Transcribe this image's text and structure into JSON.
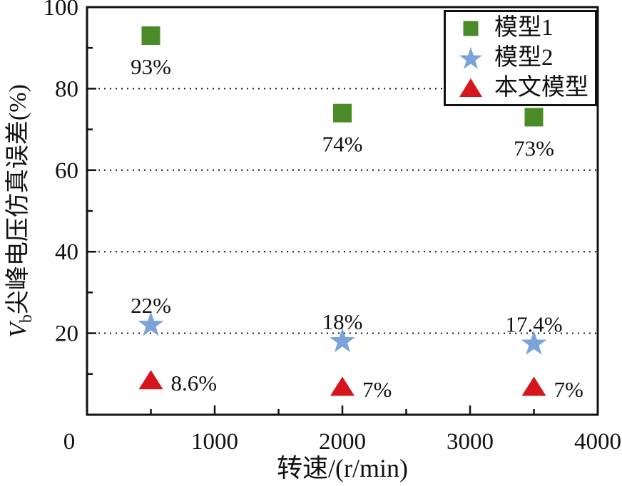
{
  "figure": {
    "background": "#ffffff",
    "axis_color": "#111111"
  },
  "chart_data": {
    "type": "scatter",
    "title": "",
    "xlabel": "转速/(r/min)",
    "ylabel_var": "V",
    "ylabel_sub": "b",
    "ylabel_rest": "尖峰电压仿真误差(%)",
    "xlim": [
      0,
      4000
    ],
    "ylim": [
      0,
      100
    ],
    "x_major_ticks": [
      0,
      1000,
      2000,
      3000,
      4000
    ],
    "x_minor_ticks": [
      500,
      1500,
      2500,
      3500
    ],
    "y_major_ticks": [
      0,
      20,
      40,
      60,
      80,
      100
    ],
    "y_minor_ticks": [
      10,
      30,
      50,
      70,
      90
    ],
    "y_gridlines": [
      20,
      40,
      60,
      80
    ],
    "grid_style": "dotted",
    "legend_position": "top-right",
    "series": [
      {
        "name": "模型1",
        "marker": "square",
        "color": "#4a8b28",
        "points": [
          {
            "x": 500,
            "y": 93,
            "label": "93%",
            "label_pos": "below"
          },
          {
            "x": 2000,
            "y": 74,
            "label": "74%",
            "label_pos": "below"
          },
          {
            "x": 3500,
            "y": 73,
            "label": "73%",
            "label_pos": "below"
          }
        ]
      },
      {
        "name": "模型2",
        "marker": "star",
        "color": "#7ba3d9",
        "points": [
          {
            "x": 500,
            "y": 22,
            "label": "22%",
            "label_pos": "above"
          },
          {
            "x": 2000,
            "y": 18,
            "label": "18%",
            "label_pos": "above"
          },
          {
            "x": 3500,
            "y": 17.4,
            "label": "17.4%",
            "label_pos": "above"
          }
        ]
      },
      {
        "name": "本文模型",
        "marker": "triangle",
        "color": "#d6161d",
        "points": [
          {
            "x": 500,
            "y": 8.6,
            "label": "8.6%",
            "label_pos": "right"
          },
          {
            "x": 2000,
            "y": 7,
            "label": "7%",
            "label_pos": "right"
          },
          {
            "x": 3500,
            "y": 7,
            "label": "7%",
            "label_pos": "right"
          }
        ]
      }
    ]
  }
}
